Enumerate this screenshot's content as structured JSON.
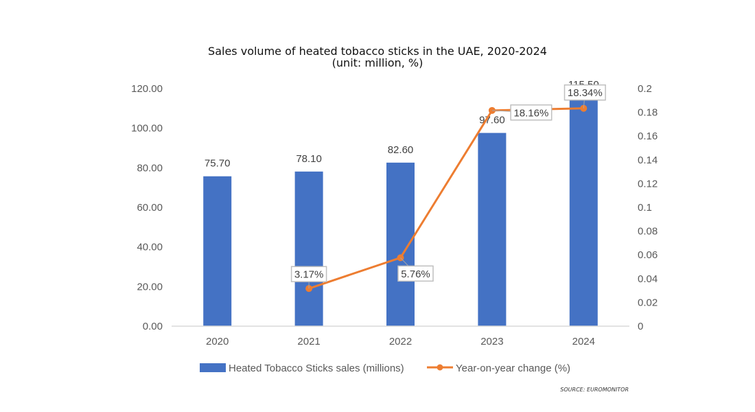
{
  "chart_data": {
    "type": "bar",
    "title": "Sales volume of heated tobacco sticks in the UAE, 2020-2024",
    "subtitle": "(unit: million, %)",
    "categories": [
      "2020",
      "2021",
      "2022",
      "2023",
      "2024"
    ],
    "series": [
      {
        "name": "Heated Tobacco Sticks sales (millions)",
        "type": "bar",
        "axis": "left",
        "color": "#4472C4",
        "values": [
          75.7,
          78.1,
          82.6,
          97.6,
          115.5
        ],
        "labels": [
          "75.70",
          "78.10",
          "82.60",
          "97.60",
          "115.50"
        ]
      },
      {
        "name": "Year-on-year change (%)",
        "type": "line",
        "axis": "right",
        "color": "#ED7D31",
        "x": [
          "2021",
          "2022",
          "2023",
          "2024"
        ],
        "values": [
          0.0317,
          0.0576,
          0.1816,
          0.1834
        ],
        "labels": [
          "3.17%",
          "5.76%",
          "18.16%",
          "18.34%"
        ]
      }
    ],
    "y_left": {
      "ylim": [
        0,
        120
      ],
      "ticks": [
        "0.00",
        "20.00",
        "40.00",
        "60.00",
        "80.00",
        "100.00",
        "120.00"
      ]
    },
    "y_right": {
      "ylim": [
        0,
        0.2
      ],
      "ticks": [
        "0",
        "0.02",
        "0.04",
        "0.06",
        "0.08",
        "0.1",
        "0.12",
        "0.14",
        "0.16",
        "0.18",
        "0.2"
      ]
    },
    "xlabel": "",
    "ylabel": "",
    "grid": false,
    "legend": {
      "position": "bottom"
    },
    "source": "SOURCE: EUROMONITOR"
  }
}
